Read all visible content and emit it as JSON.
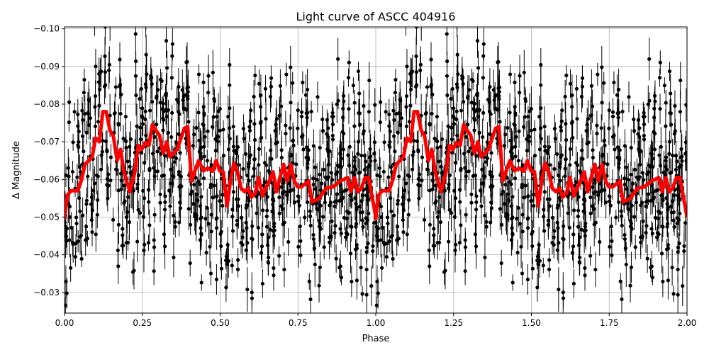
{
  "chart_data": {
    "type": "scatter",
    "title": "Light curve of ASCC 404916",
    "xlabel": "Phase",
    "ylabel": "Δ Magnitude",
    "xlim": [
      0,
      2
    ],
    "ylim": [
      -0.1005,
      -0.0245
    ],
    "y_inverted": true,
    "grid": true,
    "xticks": [
      "0.00",
      "0.25",
      "0.50",
      "0.75",
      "1.00",
      "1.25",
      "1.50",
      "1.75",
      "2.00"
    ],
    "xtick_values": [
      0,
      0.25,
      0.5,
      0.75,
      1,
      1.25,
      1.5,
      1.75,
      2
    ],
    "yticks": [
      "−0.10",
      "−0.09",
      "−0.08",
      "−0.07",
      "−0.06",
      "−0.05",
      "−0.04",
      "−0.03"
    ],
    "ytick_values": [
      -0.1,
      -0.09,
      -0.08,
      -0.07,
      -0.06,
      -0.05,
      -0.04,
      -0.03
    ],
    "series": [
      {
        "kind": "errorbar-points",
        "color": "#000000",
        "folded_twice": true
      },
      {
        "kind": "line",
        "color": "#ff0000",
        "folded_twice": true,
        "phase": [
          0,
          0.009,
          0.021,
          0.043,
          0.055,
          0.066,
          0.089,
          0.1,
          0.112,
          0.123,
          0.134,
          0.146,
          0.157,
          0.169,
          0.18,
          0.191,
          0.21,
          0.226,
          0.237,
          0.248,
          0.26,
          0.271,
          0.282,
          0.294,
          0.305,
          0.317,
          0.328,
          0.339,
          0.351,
          0.362,
          0.385,
          0.396,
          0.408,
          0.419,
          0.431,
          0.446,
          0.46,
          0.476,
          0.487,
          0.499,
          0.51,
          0.522,
          0.533,
          0.544,
          0.556,
          0.567,
          0.579,
          0.59,
          0.601,
          0.613,
          0.624,
          0.636,
          0.647,
          0.658,
          0.67,
          0.681,
          0.692,
          0.704,
          0.715,
          0.727,
          0.738,
          0.749,
          0.761,
          0.784,
          0.795,
          0.818,
          0.841,
          0.863,
          0.886,
          0.897,
          0.909,
          0.92,
          0.932,
          0.943,
          0.954,
          0.966,
          0.977,
          0.989,
          1.0
        ],
        "mag": [
          -0.0496,
          -0.0558,
          -0.057,
          -0.057,
          -0.06,
          -0.064,
          -0.066,
          -0.071,
          -0.07,
          -0.078,
          -0.078,
          -0.073,
          -0.0715,
          -0.065,
          -0.068,
          -0.062,
          -0.0567,
          -0.062,
          -0.069,
          -0.068,
          -0.0698,
          -0.069,
          -0.0745,
          -0.073,
          -0.0717,
          -0.067,
          -0.07,
          -0.066,
          -0.067,
          -0.068,
          -0.0736,
          -0.074,
          -0.0596,
          -0.0622,
          -0.065,
          -0.0623,
          -0.063,
          -0.0622,
          -0.065,
          -0.0622,
          -0.062,
          -0.053,
          -0.0596,
          -0.0644,
          -0.062,
          -0.0577,
          -0.0567,
          -0.0577,
          -0.0553,
          -0.0564,
          -0.0605,
          -0.0556,
          -0.0577,
          -0.0596,
          -0.062,
          -0.0567,
          -0.0605,
          -0.064,
          -0.0596,
          -0.064,
          -0.0596,
          -0.058,
          -0.058,
          -0.0596,
          -0.054,
          -0.055,
          -0.0577,
          -0.058,
          -0.0596,
          -0.06,
          -0.0605,
          -0.0567,
          -0.0605,
          -0.0567,
          -0.0577,
          -0.0605,
          -0.0605,
          -0.055,
          -0.05
        ]
      }
    ]
  }
}
